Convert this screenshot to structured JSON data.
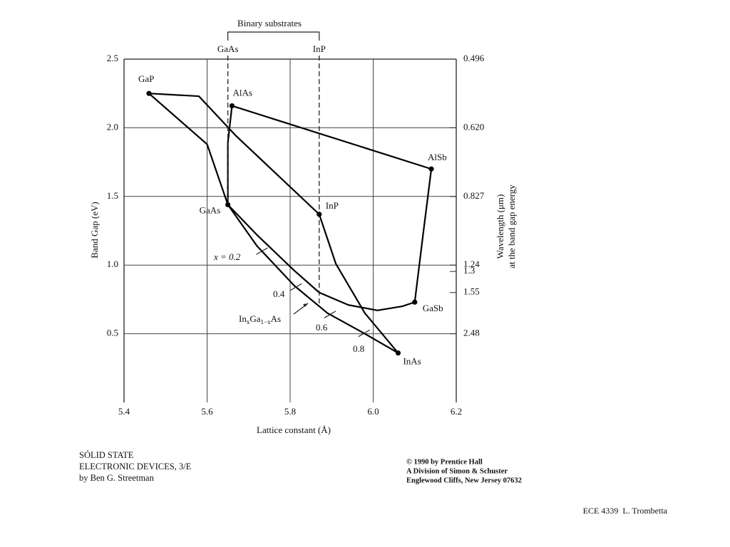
{
  "chart_data": {
    "type": "line",
    "xlabel": "Lattice constant (Å)",
    "ylabel": "Band Gap (eV)",
    "y2label": [
      "Wavelength (μm)",
      "at the band gap energy"
    ],
    "xlim": [
      5.4,
      6.2
    ],
    "xticks": [
      5.4,
      5.6,
      5.8,
      {
        "value": 6,
        "label": "6.0"
      },
      6.2
    ],
    "ylim": [
      0,
      2.5
    ],
    "yticks": [
      2.5,
      {
        "value": 2,
        "label": "2.0"
      },
      1.5,
      {
        "value": 1,
        "label": "1.0"
      },
      0.5
    ],
    "y2scale": "reciprocal",
    "y2lim": [
      null,
      0.496
    ],
    "y2ticks": [
      0.496,
      {
        "value": 0.62,
        "label": "0.620"
      },
      0.827,
      1.24,
      1.3,
      1.55,
      2.48
    ],
    "grid": true,
    "top_axis": {
      "title": "Binary substrates",
      "ticks": [
        {
          "value": 5.65,
          "label": "GaAs"
        },
        {
          "value": 5.87,
          "label": "InP"
        }
      ]
    },
    "points": [
      {
        "label": "GaP",
        "x": 5.46,
        "y": 2.25
      },
      {
        "label": "AlAs",
        "x": 5.66,
        "y": 2.16
      },
      {
        "label": "AlSb",
        "x": 6.14,
        "y": 1.7
      },
      {
        "label": "GaAs",
        "x": 5.65,
        "y": 1.44
      },
      {
        "label": "InP",
        "x": 5.87,
        "y": 1.37
      },
      {
        "label": "GaSb",
        "x": 6.1,
        "y": 0.73
      },
      {
        "label": "InAs",
        "x": 6.06,
        "y": 0.36
      }
    ],
    "series": [
      {
        "color": "#000000",
        "x": [
          5.46,
          5.6,
          5.65
        ],
        "values": [
          2.25,
          1.88,
          1.44
        ]
      },
      {
        "color": "#000000",
        "x": [
          5.46,
          5.58,
          5.67,
          5.87
        ],
        "values": [
          2.25,
          2.23,
          1.94,
          1.37
        ]
      },
      {
        "color": "#000000",
        "x": [
          5.66,
          5.65,
          5.65
        ],
        "values": [
          2.16,
          1.89,
          1.44
        ]
      },
      {
        "color": "#000000",
        "x": [
          5.66,
          6.14
        ],
        "values": [
          2.16,
          1.7
        ]
      },
      {
        "color": "#000000",
        "x": [
          6.14,
          6.12,
          6.1
        ],
        "values": [
          1.7,
          1.22,
          0.73
        ]
      },
      {
        "color": "#000000",
        "x": [
          5.87,
          5.91,
          5.98,
          6.06
        ],
        "values": [
          1.37,
          1.01,
          0.65,
          0.36
        ]
      },
      {
        "color": "#000000",
        "x": [
          5.65,
          5.72,
          5.81,
          5.87,
          5.94,
          6.01,
          6.07,
          6.1
        ],
        "values": [
          1.44,
          1.22,
          0.96,
          0.8,
          0.71,
          0.67,
          0.7,
          0.73
        ]
      },
      {
        "color": "#000000",
        "x": [
          5.65,
          5.72,
          5.81,
          5.89,
          5.98,
          6.06
        ],
        "values": [
          1.44,
          1.14,
          0.85,
          0.65,
          0.5,
          0.36
        ],
        "composition_ticks": [
          {
            "value": 0.2,
            "label": "x = 0.2"
          },
          0.4,
          0.6,
          0.8
        ],
        "label_parts": [
          "In",
          "x",
          "Ga",
          "1−x",
          "As"
        ]
      }
    ]
  },
  "footer": {
    "book": [
      "SÓLID STATE",
      "ELECTRONIC DEVICES, 3/E",
      "by Ben G. Streetman"
    ],
    "publisher": [
      "© 1990 by Prentice Hall",
      "A Division of Simon & Schuster",
      "Englewood Cliffs, New Jersey 07632"
    ],
    "course": "ECE 4339  L. Trombetta"
  }
}
